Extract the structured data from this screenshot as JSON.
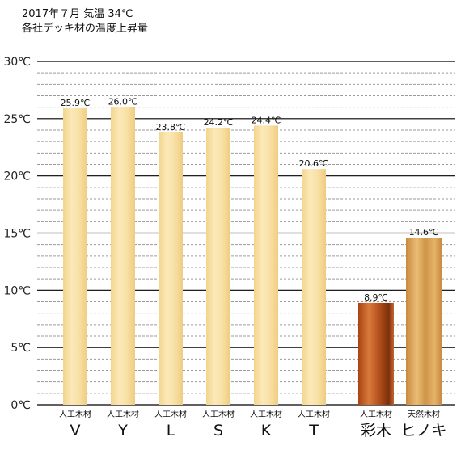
{
  "header": {
    "title_line1": "2017年７月 気温 34℃",
    "title_line2": "各社デッキ材の温度上昇量"
  },
  "colors": {
    "artificial_wood": "#f6dd9e",
    "saiboku": "#b5521a",
    "hinoki": "#d8a04e",
    "major_grid": "#000000",
    "minor_grid": "#9a9a9a"
  },
  "chart_data": {
    "type": "bar",
    "title": "各社デッキ材の温度上昇量",
    "subtitle": "2017年７月 気温 34℃",
    "xlabel": "",
    "ylabel": "",
    "ylim": [
      0,
      30
    ],
    "unit": "℃",
    "y_ticks": [
      "0℃",
      "5℃",
      "10℃",
      "15℃",
      "20℃",
      "25℃",
      "30℃"
    ],
    "grid": true,
    "legend": "none",
    "categories": [
      "V",
      "Y",
      "L",
      "S",
      "K",
      "T",
      "彩木",
      "ヒノキ"
    ],
    "sub_labels": [
      "人工木材",
      "人工木材",
      "人工木材",
      "人工木材",
      "人工木材",
      "人工木材",
      "人工木材",
      "天然木材"
    ],
    "values": [
      25.9,
      26.0,
      23.8,
      24.2,
      24.4,
      20.6,
      8.9,
      14.6
    ],
    "value_labels": [
      "25.9℃",
      "26.0℃",
      "23.8℃",
      "24.2℃",
      "24.4℃",
      "20.6℃",
      "8.9℃",
      "14.6℃"
    ],
    "bar_colors": [
      "artificial_wood",
      "artificial_wood",
      "artificial_wood",
      "artificial_wood",
      "artificial_wood",
      "artificial_wood",
      "saiboku",
      "hinoki"
    ]
  }
}
